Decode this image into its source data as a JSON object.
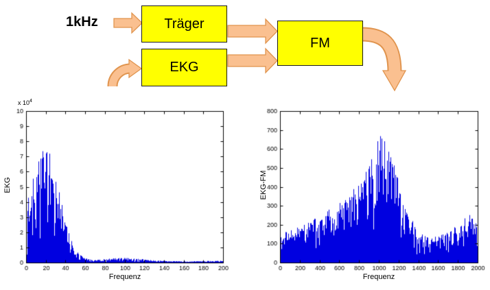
{
  "diagram": {
    "input_label": "1kHz",
    "traeger_label": "Träger",
    "ekg_label": "EKG",
    "fm_label": "FM",
    "block_fill": "#ffff00",
    "block_border": "#1a1a1a",
    "arrow_fill": "#fac090",
    "arrow_border": "#e0944e"
  },
  "chart_data": [
    {
      "type": "line",
      "kind": "magnitude-spectrum",
      "title": "",
      "ylabel": "EKG",
      "xlabel": "Frequenz",
      "y_scale_base": "x 10",
      "y_scale_exp": "4",
      "xlim": [
        0,
        200
      ],
      "ylim": [
        0,
        10
      ],
      "xticks": [
        0,
        20,
        40,
        60,
        80,
        100,
        120,
        140,
        160,
        180,
        200
      ],
      "yticks": [
        0,
        1,
        2,
        3,
        4,
        5,
        6,
        7,
        8,
        9,
        10
      ],
      "color": "#0000e0",
      "grid": false,
      "seed": 13,
      "floor": 0.07,
      "shape": 1.25,
      "envelope_x": [
        0,
        1,
        2,
        4,
        6,
        9,
        12,
        15,
        18,
        20,
        22,
        25,
        28,
        31,
        34,
        37,
        40,
        44,
        48,
        52,
        56,
        60,
        65,
        70,
        75,
        80,
        90,
        100,
        110,
        120,
        130,
        145,
        160,
        180,
        200
      ],
      "envelope_y": [
        1.5,
        7.6,
        5.0,
        5.5,
        6.3,
        5.8,
        6.6,
        7.2,
        8.7,
        7.8,
        8.5,
        6.8,
        5.8,
        5.2,
        4.6,
        3.8,
        2.8,
        1.8,
        1.1,
        0.7,
        0.45,
        0.3,
        0.2,
        0.18,
        0.2,
        0.25,
        0.3,
        0.32,
        0.27,
        0.22,
        0.15,
        0.1,
        0.08,
        0.1,
        0.12
      ]
    },
    {
      "type": "line",
      "kind": "magnitude-spectrum",
      "title": "",
      "ylabel": "EKG-FM",
      "xlabel": "Frequenz",
      "xlim": [
        0,
        2000
      ],
      "ylim": [
        0,
        800
      ],
      "xticks": [
        0,
        200,
        400,
        600,
        800,
        1000,
        1200,
        1400,
        1600,
        1800,
        2000
      ],
      "yticks": [
        0,
        100,
        200,
        300,
        400,
        500,
        600,
        700,
        800
      ],
      "color": "#0000e0",
      "grid": false,
      "seed": 99,
      "floor": 0.1,
      "shape": 1.05,
      "envelope_x": [
        0,
        100,
        200,
        300,
        400,
        500,
        600,
        700,
        800,
        850,
        900,
        950,
        1000,
        1030,
        1060,
        1100,
        1150,
        1200,
        1250,
        1300,
        1350,
        1400,
        1500,
        1600,
        1700,
        1800,
        1900,
        2000
      ],
      "envelope_y": [
        160,
        170,
        190,
        215,
        250,
        285,
        315,
        365,
        430,
        470,
        525,
        585,
        710,
        690,
        640,
        600,
        520,
        440,
        350,
        280,
        215,
        160,
        130,
        140,
        165,
        205,
        260,
        215
      ]
    }
  ]
}
